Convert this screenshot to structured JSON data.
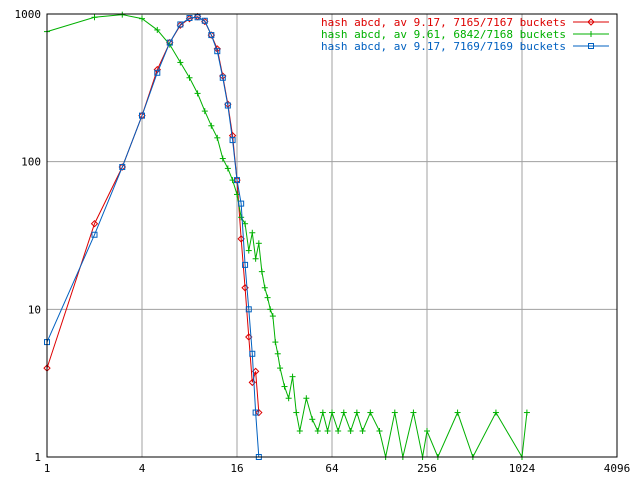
{
  "chart_data": {
    "type": "line",
    "x_scale": "log2",
    "y_scale": "log10",
    "xlim": [
      1,
      4096
    ],
    "ylim": [
      1,
      1000
    ],
    "x_ticks": [
      "1",
      "4",
      "16",
      "64",
      "256",
      "1024",
      "4096"
    ],
    "y_ticks": [
      "1",
      "10",
      "100",
      "1000"
    ],
    "grid": true,
    "legend_position": "top-right",
    "series": [
      {
        "name": "hash abcd, av 9.17, 7165/7167 buckets",
        "color": "#dd0000",
        "marker": "diamond",
        "x": [
          1,
          2,
          3,
          4,
          5,
          6,
          7,
          8,
          9,
          10,
          11,
          12,
          13,
          14,
          15,
          16,
          17,
          18,
          19,
          20,
          21,
          22
        ],
        "y": [
          4,
          38,
          92,
          205,
          420,
          640,
          840,
          930,
          960,
          890,
          720,
          580,
          380,
          245,
          150,
          75,
          30,
          14,
          6.5,
          3.2,
          3.8,
          2
        ]
      },
      {
        "name": "hash abcd, av 9.61, 6842/7168 buckets",
        "color": "#00b000",
        "marker": "plus",
        "x": [
          1,
          2,
          3,
          4,
          5,
          6,
          7,
          8,
          9,
          10,
          11,
          12,
          13,
          14,
          15,
          16,
          17,
          18,
          19,
          20,
          21,
          22,
          23,
          24,
          25,
          26,
          27,
          28,
          29,
          30,
          32,
          34,
          36,
          38,
          40,
          44,
          48,
          52,
          56,
          60,
          64,
          70,
          76,
          84,
          92,
          100,
          112,
          128,
          140,
          160,
          180,
          210,
          240,
          256,
          300,
          400,
          500,
          700,
          1024,
          1100
        ],
        "y": [
          760,
          950,
          990,
          930,
          780,
          620,
          470,
          370,
          290,
          220,
          175,
          145,
          105,
          90,
          75,
          60,
          42,
          38,
          25,
          33,
          22,
          28,
          18,
          14,
          12,
          10,
          9,
          6,
          5,
          4,
          3,
          2.5,
          3.5,
          2,
          1.5,
          2.5,
          1.8,
          1.5,
          2,
          1.5,
          2,
          1.5,
          2,
          1.5,
          2,
          1.5,
          2,
          1.5,
          1,
          2,
          1,
          2,
          1,
          1.5,
          1,
          2,
          1,
          2,
          1,
          2
        ]
      },
      {
        "name": "hash abcd, av 9.17, 7169/7169 buckets",
        "color": "#0060c0",
        "marker": "square",
        "x": [
          1,
          2,
          3,
          4,
          5,
          6,
          7,
          8,
          9,
          10,
          11,
          12,
          13,
          14,
          15,
          16,
          17,
          18,
          19,
          20,
          21,
          22
        ],
        "y": [
          6,
          32,
          92,
          205,
          400,
          640,
          850,
          940,
          950,
          900,
          720,
          560,
          370,
          240,
          140,
          75,
          52,
          20,
          10,
          5,
          2,
          1
        ]
      }
    ]
  }
}
